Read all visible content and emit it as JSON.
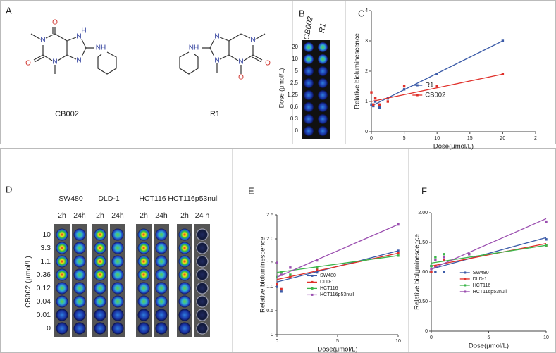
{
  "panel_labels": [
    "A",
    "B",
    "C",
    "D",
    "E",
    "F"
  ],
  "molecules": {
    "names": [
      "CB002",
      "R1"
    ],
    "atoms": {
      "o": "O",
      "n": "N",
      "nh": "NH",
      "h": "H"
    }
  },
  "plate_b": {
    "columns": [
      "CB002",
      "R1"
    ],
    "doses": [
      "20",
      "10",
      "5",
      "2.5",
      "1.25",
      "0.6",
      "0.3",
      "0"
    ],
    "ylabel": "Dose (μmol/L)"
  },
  "plate_d": {
    "lines": [
      "SW480",
      "DLD-1",
      "HCT116",
      "HCT116p53null"
    ],
    "times": [
      "2h",
      "24h",
      "2h",
      "24h",
      "2h",
      "24h",
      "2h",
      "24 h"
    ],
    "doses": [
      "10",
      "3.3",
      "1.1",
      "0.36",
      "0.12",
      "0.04",
      "0.01",
      "0"
    ],
    "ylabel": "CB002 (μmol/L)"
  },
  "chart_data": [
    {
      "type": "scatter",
      "xlabel": "Dose(μmol/L)",
      "ylabel": "Relative bioluminescence",
      "x": [
        0,
        0.3,
        0.6,
        1.25,
        2.5,
        5,
        10,
        20
      ],
      "xlim": [
        0,
        25
      ],
      "xticks": [
        0,
        5,
        10,
        15,
        20,
        {
          "value": 25,
          "label": "2"
        }
      ],
      "ylim": [
        0,
        4
      ],
      "yticks": [
        0,
        1,
        2,
        3,
        4
      ],
      "legend": "center right",
      "series": [
        {
          "name": "R1",
          "color": "#3b5ba8",
          "values": [
            0.9,
            0.85,
            1.0,
            0.8,
            1.1,
            1.4,
            1.9,
            3.0
          ],
          "trend": {
            "x": [
              0,
              20
            ],
            "values": [
              0.85,
              3.0
            ]
          }
        },
        {
          "name": "CB002",
          "color": "#e0302a",
          "values": [
            1.3,
            0.9,
            1.1,
            0.9,
            1.0,
            1.5,
            1.5,
            1.9
          ],
          "trend": {
            "x": [
              0,
              20
            ],
            "values": [
              1.0,
              1.9
            ]
          }
        }
      ]
    },
    {
      "type": "scatter",
      "xlabel": "Dose(μmol/L)",
      "ylabel": "Relative bioluminescence",
      "x": [
        0,
        0.36,
        1.1,
        3.3,
        10
      ],
      "xlim": [
        0,
        10
      ],
      "xticks": [
        0,
        5,
        10
      ],
      "ylim": [
        0,
        2.5
      ],
      "yticks": [
        0,
        0.5,
        {
          "value": 1,
          "label": "1.0"
        },
        1.5,
        {
          "value": 2,
          "label": "2.0"
        },
        2.5
      ],
      "legend": "lower right",
      "series": [
        {
          "name": "SW480",
          "color": "#3b5ba8",
          "values": [
            1.0,
            0.9,
            1.2,
            1.3,
            1.75
          ],
          "trend": {
            "x": [
              0,
              10
            ],
            "values": [
              1.1,
              1.75
            ]
          }
        },
        {
          "name": "DLD-1",
          "color": "#e0302a",
          "values": [
            1.05,
            0.95,
            1.2,
            1.35,
            1.7
          ],
          "trend": {
            "x": [
              0,
              10
            ],
            "values": [
              1.15,
              1.7
            ]
          }
        },
        {
          "name": "HCT116",
          "color": "#3cb54a",
          "values": [
            1.2,
            1.3,
            1.25,
            1.4,
            1.65
          ],
          "trend": {
            "x": [
              0,
              10
            ],
            "values": [
              1.3,
              1.65
            ]
          }
        },
        {
          "name": "HCT116p53null",
          "color": "#9b4fb0",
          "values": [
            1.5,
            1.25,
            1.4,
            1.55,
            2.3
          ],
          "trend": {
            "x": [
              0,
              10
            ],
            "values": [
              1.2,
              2.3
            ]
          }
        }
      ]
    },
    {
      "type": "scatter",
      "xlabel": "Dose(μmol/L)",
      "ylabel": "Relative bioluminescence",
      "x": [
        0,
        0.36,
        1.1,
        3.3,
        10
      ],
      "xlim": [
        0,
        10
      ],
      "xticks": [
        0,
        5,
        10
      ],
      "ylim": [
        0,
        2
      ],
      "yticks": [
        0,
        {
          "value": 0.5,
          "label": "0.50"
        },
        {
          "value": 1,
          "label": "1.00"
        },
        {
          "value": 1.5,
          "label": "1.50"
        },
        {
          "value": 2,
          "label": "2.00"
        }
      ],
      "legend": "lower right",
      "series": [
        {
          "name": "SW480",
          "color": "#3b5ba8",
          "values": [
            1.1,
            1.0,
            1.0,
            1.3,
            1.55
          ],
          "trend": {
            "x": [
              0,
              10
            ],
            "values": [
              1.05,
              1.58
            ]
          }
        },
        {
          "name": "DLD-1",
          "color": "#e0302a",
          "values": [
            1.0,
            1.1,
            1.2,
            1.3,
            1.45
          ],
          "trend": {
            "x": [
              0,
              10
            ],
            "values": [
              1.1,
              1.48
            ]
          }
        },
        {
          "name": "HCT116",
          "color": "#3cb54a",
          "values": [
            1.1,
            1.25,
            1.3,
            1.3,
            1.45
          ],
          "trend": {
            "x": [
              0,
              10
            ],
            "values": [
              1.15,
              1.45
            ]
          }
        },
        {
          "name": "HCT116p53null",
          "color": "#9b4fb0",
          "values": [
            1.05,
            1.2,
            1.25,
            1.3,
            1.85
          ],
          "trend": {
            "x": [
              0,
              10
            ],
            "values": [
              1.05,
              1.9
            ]
          }
        }
      ]
    }
  ]
}
